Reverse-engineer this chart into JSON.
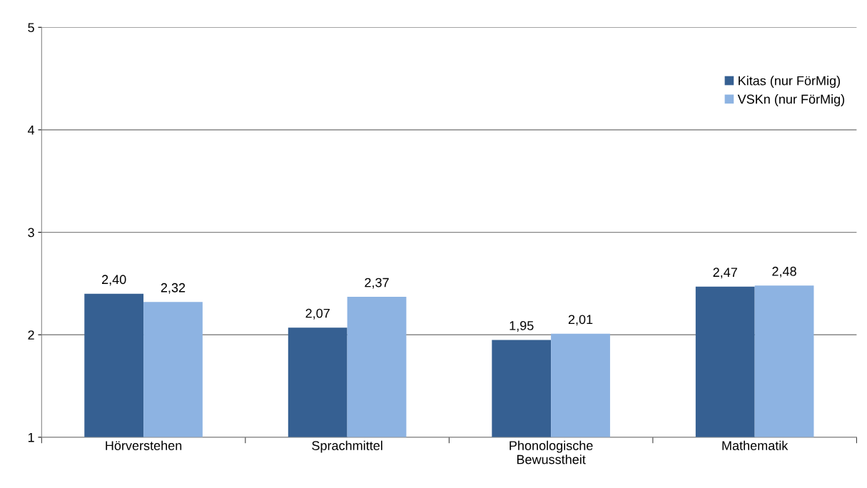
{
  "chart_data": {
    "type": "bar",
    "categories": [
      "Hörverstehen",
      "Sprachmittel",
      "Phonologische\nBewusstheit",
      "Mathematik"
    ],
    "series": [
      {
        "name": "Kitas (nur FörMig)",
        "color": "#366092",
        "values": [
          2.4,
          2.07,
          1.95,
          2.47
        ],
        "value_labels": [
          "2,40",
          "2,07",
          "1,95",
          "2,47"
        ]
      },
      {
        "name": "VSKn (nur FörMig)",
        "color": "#8db3e2",
        "values": [
          2.32,
          2.37,
          2.01,
          2.48
        ],
        "value_labels": [
          "2,32",
          "2,37",
          "2,01",
          "2,48"
        ]
      }
    ],
    "ylim": [
      1,
      5
    ],
    "yticks": [
      1,
      2,
      3,
      4,
      5
    ],
    "grid": "y",
    "legend": "top right"
  }
}
